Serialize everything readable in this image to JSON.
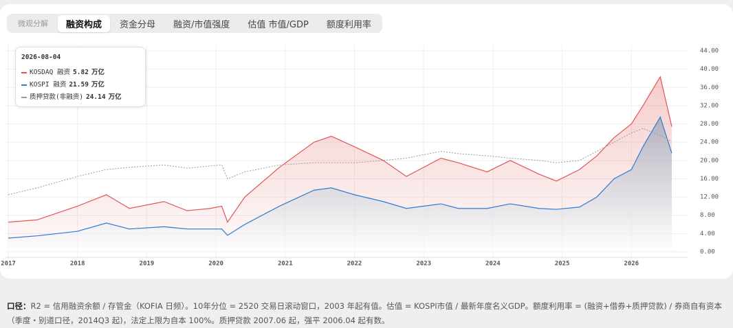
{
  "tabs": {
    "items": [
      "微观分解",
      "融资构成",
      "资金分母",
      "融资/市值强度",
      "估值 市值/GDP",
      "额度利用率"
    ],
    "active": 1
  },
  "chart_data": {
    "type": "stacked-area",
    "stacked": true,
    "x": [
      "2017-01",
      "2017-06",
      "2018-01",
      "2018-06",
      "2018-10",
      "2019-04",
      "2019-08",
      "2019-12",
      "2020-02",
      "2020-03",
      "2020-06",
      "2020-12",
      "2021-06",
      "2021-09",
      "2022-01",
      "2022-06",
      "2022-10",
      "2023-04",
      "2023-07",
      "2023-12",
      "2024-04",
      "2024-09",
      "2024-12",
      "2025-04",
      "2025-07",
      "2025-10",
      "2026-01",
      "2026-03",
      "2026-06",
      "2026-08"
    ],
    "xlim": [
      "2017-01",
      "2026-08"
    ],
    "xticks": [
      "2017",
      "2018",
      "2019",
      "2020",
      "2021",
      "2022",
      "2023",
      "2024",
      "2025",
      "2026"
    ],
    "ylim": [
      0,
      44
    ],
    "yticks": [
      {
        "value": 0,
        "label": "0.00"
      },
      {
        "value": 4,
        "label": "4.00"
      },
      {
        "value": 8,
        "label": "8.00"
      },
      {
        "value": 12,
        "label": "12.00"
      },
      {
        "value": 16,
        "label": "16.00"
      },
      {
        "value": 20,
        "label": "20.00"
      },
      {
        "value": 24,
        "label": "24.00"
      },
      {
        "value": 28,
        "label": "28.00"
      },
      {
        "value": 32,
        "label": "32.00"
      },
      {
        "value": 36,
        "label": "36.00"
      },
      {
        "value": 40,
        "label": "40.00"
      },
      {
        "value": 44,
        "label": "44.00"
      }
    ],
    "grid": true,
    "series": [
      {
        "name": "KOSDAQ 融资",
        "color": "#e05555",
        "stack": true,
        "values": [
          3.5,
          3.5,
          5.5,
          6.2,
          4.5,
          5.5,
          4.0,
          4.5,
          5.0,
          2.9,
          6.0,
          8.5,
          10.5,
          11.3,
          10.5,
          9.0,
          7.0,
          10.0,
          10.0,
          8.0,
          9.5,
          7.5,
          6.2,
          8.2,
          9.0,
          9.0,
          10.0,
          9.0,
          8.8,
          5.82
        ]
      },
      {
        "name": "KOSPI 融资",
        "color": "#2b7bd6",
        "stack": true,
        "values": [
          3.0,
          3.5,
          4.5,
          6.3,
          5.0,
          5.5,
          5.0,
          5.0,
          5.0,
          3.6,
          6.0,
          10.0,
          13.5,
          14.0,
          12.5,
          11.0,
          9.5,
          10.5,
          9.5,
          9.5,
          10.5,
          9.5,
          9.3,
          9.8,
          12.0,
          16.0,
          18.0,
          23.0,
          29.5,
          21.59
        ]
      },
      {
        "name": "质押贷款(非融资)",
        "color": "#999999",
        "stack": false,
        "dashed": true,
        "values": [
          12.5,
          14,
          16.5,
          18,
          18.5,
          19,
          18.3,
          18.8,
          19,
          16,
          17.5,
          19,
          19.5,
          19.5,
          19.5,
          20,
          20.5,
          22,
          21.5,
          21,
          20.5,
          20,
          19.5,
          20,
          22,
          24,
          26,
          27,
          25.5,
          24.14
        ]
      }
    ],
    "tooltip": {
      "date": "2026-08-04",
      "unit": "万亿"
    }
  },
  "footer": {
    "label": "口径：",
    "text": "R2 = 信用融资余额 / 存管金（KOFIA 日频）。10年分位 = 2520 交易日滚动窗口，2003 年起有值。估值 = KOSPI市值 / 最新年度名义GDP。额度利用率 = (融资+借券+质押贷款) / 券商自有资本（季度・别道口径，2014Q3 起)，法定上限为自本 100%。质押贷款 2007.06 起，强平 2006.04 起有数。"
  }
}
